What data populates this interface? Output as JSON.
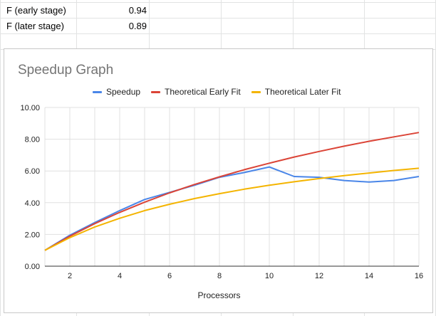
{
  "sheet": {
    "rows": [
      {
        "label": "F (early stage)",
        "value": "0.94"
      },
      {
        "label": "F (later stage)",
        "value": "0.89"
      }
    ]
  },
  "chart": {
    "title": "Speedup Graph",
    "xlabel": "Processors",
    "legend": [
      {
        "name": "Speedup",
        "color": "#4a86e8"
      },
      {
        "name": "Theoretical Early Fit",
        "color": "#db4437"
      },
      {
        "name": "Theoretical Later Fit",
        "color": "#f4b400"
      }
    ]
  },
  "chart_data": {
    "type": "line",
    "title": "Speedup Graph",
    "xlabel": "Processors",
    "ylabel": "",
    "xlim": [
      1,
      16
    ],
    "ylim": [
      0,
      10
    ],
    "xticks": [
      2,
      4,
      6,
      8,
      10,
      12,
      14,
      16
    ],
    "yticks": [
      "0.00",
      "2.00",
      "4.00",
      "6.00",
      "8.00",
      "10.00"
    ],
    "grid": true,
    "legend_position": "top",
    "x": [
      1,
      2,
      3,
      4,
      5,
      6,
      7,
      8,
      9,
      10,
      11,
      12,
      13,
      14,
      15,
      16
    ],
    "series": [
      {
        "name": "Speedup",
        "color": "#4a86e8",
        "values": [
          1.0,
          1.95,
          2.75,
          3.5,
          4.2,
          4.65,
          5.1,
          5.6,
          5.9,
          6.25,
          5.65,
          5.6,
          5.4,
          5.3,
          5.4,
          5.65
        ]
      },
      {
        "name": "Theoretical Early Fit",
        "color": "#db4437",
        "values": [
          1.0,
          1.89,
          2.68,
          3.39,
          4.03,
          4.62,
          5.15,
          5.63,
          6.08,
          6.49,
          6.88,
          7.23,
          7.56,
          7.87,
          8.15,
          8.42
        ]
      },
      {
        "name": "Theoretical Later Fit",
        "color": "#f4b400",
        "values": [
          1.0,
          1.8,
          2.47,
          3.02,
          3.5,
          3.9,
          4.26,
          4.57,
          4.85,
          5.1,
          5.32,
          5.52,
          5.71,
          5.87,
          6.03,
          6.17
        ]
      }
    ]
  }
}
